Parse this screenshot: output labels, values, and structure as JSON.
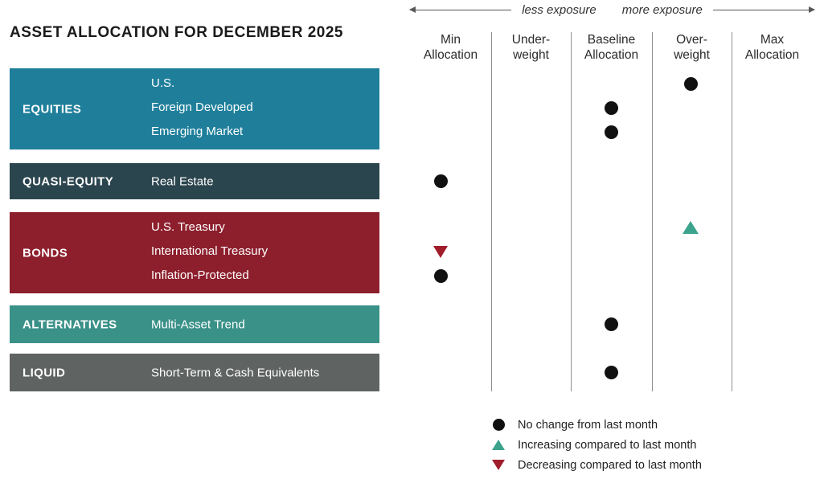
{
  "title": "ASSET ALLOCATION FOR DECEMBER 2025",
  "exposure_axis": {
    "less_label": "less exposure",
    "more_label": "more exposure"
  },
  "columns": [
    {
      "id": "min-allocation",
      "line1": "Min",
      "line2": "Allocation"
    },
    {
      "id": "under-weight",
      "line1": "Under-",
      "line2": "weight"
    },
    {
      "id": "baseline-allocation",
      "line1": "Baseline",
      "line2": "Allocation"
    },
    {
      "id": "over-weight",
      "line1": "Over-",
      "line2": "weight"
    },
    {
      "id": "max-allocation",
      "line1": "Max",
      "line2": "Allocation"
    }
  ],
  "chart_data": {
    "type": "scatter",
    "title": "ASSET ALLOCATION FOR DECEMBER 2025",
    "x_categories": [
      "Min Allocation",
      "Under-weight",
      "Baseline Allocation",
      "Over-weight",
      "Max Allocation"
    ],
    "groups": [
      {
        "name": "EQUITIES",
        "color": "#1F7F9B",
        "assets": [
          {
            "label": "U.S.",
            "allocation": "Over-weight",
            "allocation_id": "over-weight",
            "change": "no-change"
          },
          {
            "label": "Foreign Developed",
            "allocation": "Baseline Allocation",
            "allocation_id": "baseline-allocation",
            "change": "no-change"
          },
          {
            "label": "Emerging Market",
            "allocation": "Baseline Allocation",
            "allocation_id": "baseline-allocation",
            "change": "no-change"
          }
        ]
      },
      {
        "name": "QUASI-EQUITY",
        "color": "#2B454E",
        "assets": [
          {
            "label": "Real Estate",
            "allocation": "Min Allocation",
            "allocation_id": "min-allocation",
            "change": "no-change"
          }
        ]
      },
      {
        "name": "BONDS",
        "color": "#8D1F2D",
        "assets": [
          {
            "label": "U.S. Treasury",
            "allocation": "Over-weight",
            "allocation_id": "over-weight",
            "change": "increasing"
          },
          {
            "label": "International Treasury",
            "allocation": "Min Allocation",
            "allocation_id": "min-allocation",
            "change": "decreasing"
          },
          {
            "label": "Inflation-Protected",
            "allocation": "Min Allocation",
            "allocation_id": "min-allocation",
            "change": "no-change"
          }
        ]
      },
      {
        "name": "ALTERNATIVES",
        "color": "#3A9188",
        "assets": [
          {
            "label": "Multi-Asset Trend",
            "allocation": "Baseline Allocation",
            "allocation_id": "baseline-allocation",
            "change": "no-change"
          }
        ]
      },
      {
        "name": "LIQUID",
        "color": "#5F6361",
        "assets": [
          {
            "label": "Short-Term & Cash Equivalents",
            "allocation": "Baseline Allocation",
            "allocation_id": "baseline-allocation",
            "change": "no-change"
          }
        ]
      }
    ],
    "marker_colors": {
      "no-change": "#111111",
      "increasing": "#3CA38C",
      "decreasing": "#A01D2B"
    },
    "legend": [
      {
        "symbol": "circle",
        "color": "#111111",
        "label": "No change from last month"
      },
      {
        "symbol": "triangle-up",
        "color": "#3CA38C",
        "label": "Increasing compared to last month"
      },
      {
        "symbol": "triangle-down",
        "color": "#A01D2B",
        "label": "Decreasing compared to last month"
      }
    ]
  }
}
